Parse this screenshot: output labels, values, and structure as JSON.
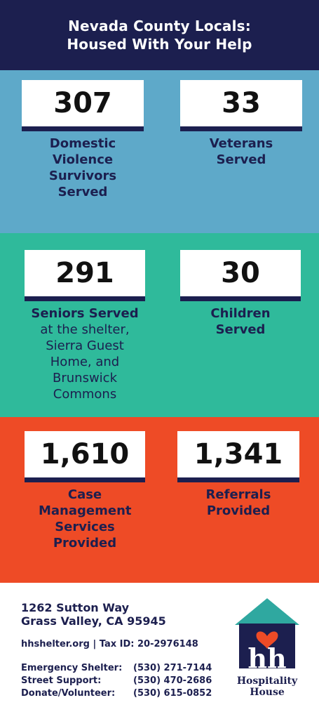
{
  "header": {
    "title_line1": "Nevada County Locals:",
    "title_line2": "Housed With Your Help"
  },
  "colors": {
    "navy": "#1c1f4f",
    "blue": "#5ea9c9",
    "teal": "#2fba9b",
    "orange": "#ee4b26"
  },
  "stats": {
    "dv": {
      "value": "307",
      "label": "Domestic Violence Survivors Served"
    },
    "veterans": {
      "value": "33",
      "label": "Veterans Served"
    },
    "seniors": {
      "value": "291",
      "label_bold": "Seniors Served",
      "label_rest": "at the shelter, Sierra Guest Home, and Brunswick Commons"
    },
    "children": {
      "value": "30",
      "label": "Children Served"
    },
    "case": {
      "value": "1,610",
      "label": "Case Management Services Provided"
    },
    "referrals": {
      "value": "1,341",
      "label": "Referrals Provided"
    }
  },
  "footer": {
    "address_line1": "1262 Sutton Way",
    "address_line2": "Grass Valley, CA 95945",
    "site": "hhshelter.org | Tax ID: 20-2976148",
    "contacts": [
      {
        "label": "Emergency Shelter:",
        "phone": "(530) 271-7144"
      },
      {
        "label": "Street Support:",
        "phone": "(530) 470-2686"
      },
      {
        "label": "Donate/Volunteer:",
        "phone": "(530) 615-0852"
      }
    ],
    "logo": {
      "letters": "hh",
      "name_line1": "Hospitality",
      "name_line2": "House"
    }
  }
}
